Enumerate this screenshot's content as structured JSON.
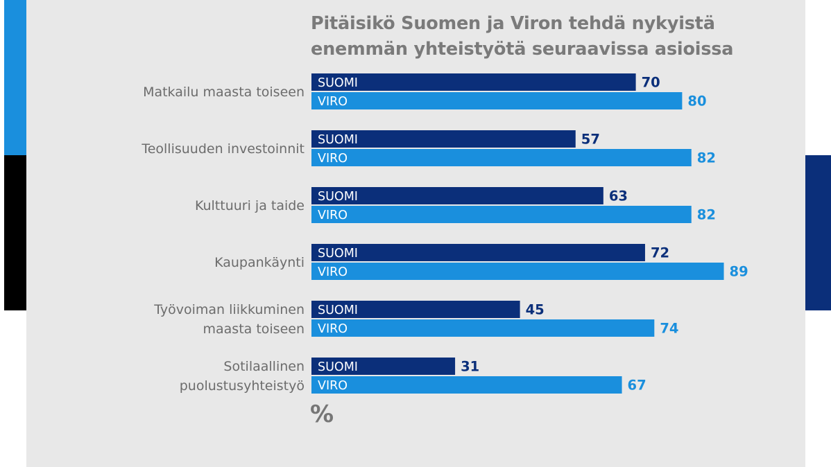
{
  "colors": {
    "suomi": "#0b2f7a",
    "viro": "#1a8fdd",
    "background": "#e8e8e8",
    "stripe_blue": "#1a8fdd",
    "stripe_black": "#000000",
    "stripe_navy": "#0b2f7a"
  },
  "chart_data": {
    "type": "bar",
    "orientation": "horizontal",
    "title": "Pitäisikö Suomen ja Viron tehdä nykyistä enemmän yhteistyötä seuraavissa asioissa",
    "title_lines": [
      "Pitäisikö Suomen ja Viron tehdä nykyistä",
      "enemmän yhteistyötä seuraavissa asioissa"
    ],
    "unit": "%",
    "xlim": [
      0,
      100
    ],
    "grid": false,
    "categories": [
      {
        "lines": [
          "Matkailu maasta toiseen"
        ]
      },
      {
        "lines": [
          "Teollisuuden investoinnit"
        ]
      },
      {
        "lines": [
          "Kulttuuri ja taide"
        ]
      },
      {
        "lines": [
          "Kaupankäynti"
        ]
      },
      {
        "lines": [
          "Työvoiman liikkuminen",
          "maasta toiseen"
        ]
      },
      {
        "lines": [
          "Sotilaallinen",
          "puolustusyhteistyö"
        ]
      }
    ],
    "series": [
      {
        "name": "SUOMI",
        "values": [
          70,
          57,
          63,
          72,
          45,
          31
        ]
      },
      {
        "name": "VIRO",
        "values": [
          80,
          82,
          82,
          89,
          74,
          67
        ]
      }
    ]
  }
}
